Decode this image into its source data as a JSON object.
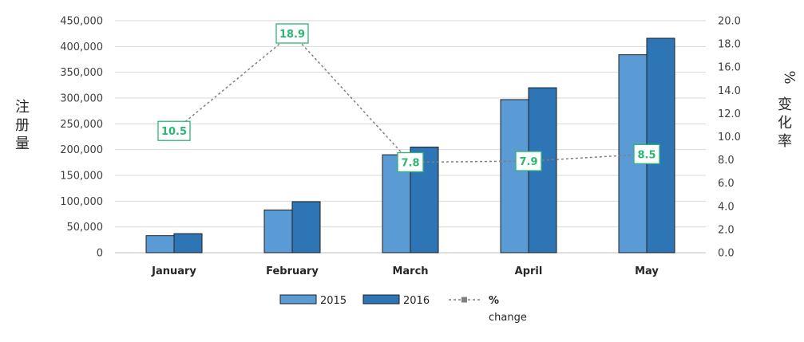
{
  "chart_data": {
    "type": "bar",
    "categories": [
      "January",
      "February",
      "March",
      "April",
      "May"
    ],
    "series": [
      {
        "name": "2015",
        "type": "bar",
        "axis": "left",
        "color": "#5b9bd5",
        "values": [
          33000,
          83000,
          190000,
          297000,
          384000
        ]
      },
      {
        "name": "2016",
        "type": "bar",
        "axis": "left",
        "color": "#2e75b6",
        "values": [
          37000,
          99000,
          205000,
          320000,
          416000
        ]
      },
      {
        "name": "% change",
        "type": "line",
        "axis": "right",
        "color": "#808080",
        "values": [
          10.5,
          18.9,
          7.8,
          7.9,
          8.5
        ],
        "data_labels": [
          "10.5",
          "18.9",
          "7.8",
          "7.9",
          "8.5"
        ],
        "label_color": "#2bb673"
      }
    ],
    "ylabel_left": "注册量",
    "ylabel_right": "% 变化率",
    "ylim_left": [
      0,
      450000
    ],
    "ylim_right": [
      0,
      20
    ],
    "yticks_left": [
      "0",
      "50,000",
      "100,000",
      "150,000",
      "200,000",
      "250,000",
      "300,000",
      "350,000",
      "400,000",
      "450,000"
    ],
    "yticks_right": [
      "0.0",
      "2.0",
      "4.0",
      "6.0",
      "8.0",
      "10.0",
      "12.0",
      "14.0",
      "16.0",
      "18.0",
      "20.0"
    ],
    "grid": true,
    "legend_position": "bottom",
    "legend": [
      {
        "label": "2015",
        "marker": "bar",
        "color": "#5b9bd5"
      },
      {
        "label": "2016",
        "marker": "bar",
        "color": "#2e75b6"
      },
      {
        "label": "%",
        "label2": "change",
        "marker": "line",
        "color": "#808080"
      }
    ]
  }
}
